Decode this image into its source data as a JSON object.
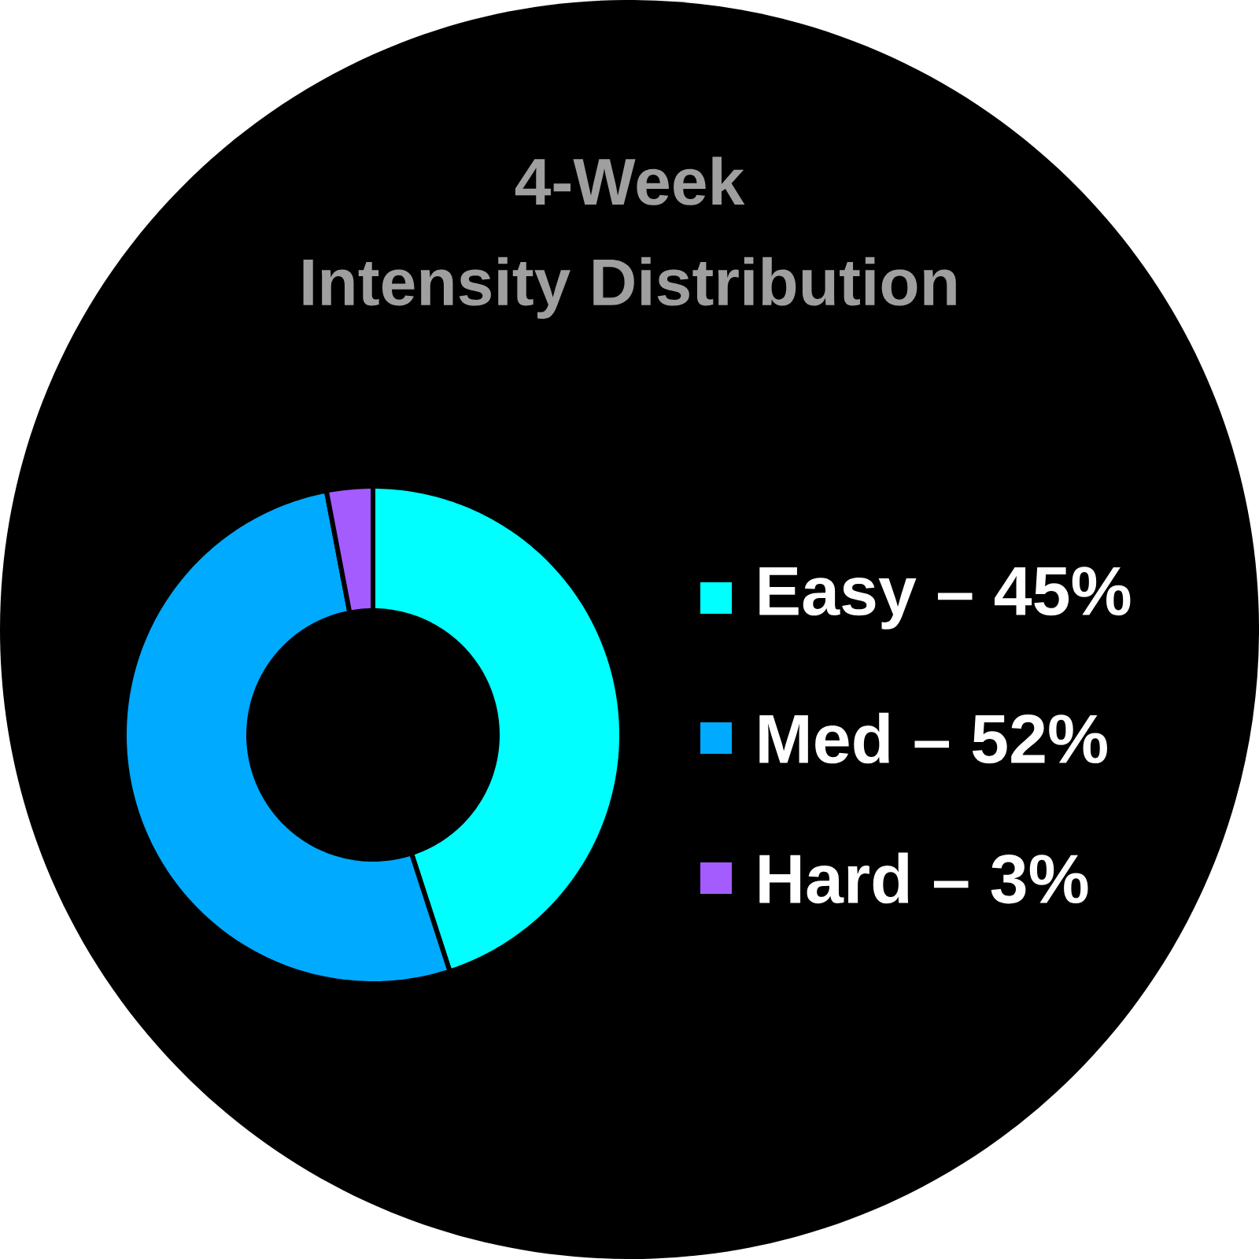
{
  "chart_data": {
    "type": "donut",
    "title": "4-Week",
    "subtitle": "Intensity Distribution",
    "categories": [
      "Easy – 45%",
      "Med  – 52%",
      "Hard – 3%"
    ],
    "values": [
      45,
      52,
      3
    ],
    "colors": [
      "#00ffff",
      "#00aaff",
      "#a55cff"
    ],
    "legend": "right"
  }
}
